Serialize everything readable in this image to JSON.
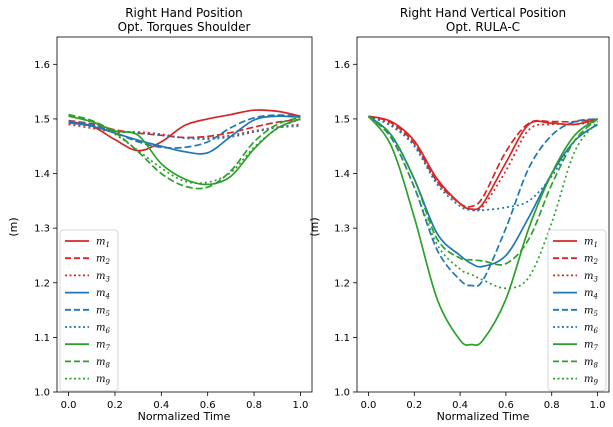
{
  "chart_data": [
    {
      "type": "line",
      "title": "Right Hand Position",
      "subtitle": "Opt. Torques Shoulder",
      "xlabel": "Normalized Time",
      "ylabel": "(m)",
      "xlim": [
        -0.05,
        1.05
      ],
      "ylim": [
        1.0,
        1.65
      ],
      "xticks": [
        "0.0",
        "0.2",
        "0.4",
        "0.6",
        "0.8",
        "1.0"
      ],
      "yticks": [
        "1.0",
        "1.1",
        "1.2",
        "1.3",
        "1.4",
        "1.5",
        "1.6"
      ],
      "grid": false,
      "legend_position": "lower-left",
      "x": [
        0,
        0.1,
        0.2,
        0.3,
        0.4,
        0.5,
        0.6,
        0.7,
        0.8,
        0.9,
        1.0
      ],
      "series": [
        {
          "name": "m1",
          "color": "#d62728",
          "dash": "solid",
          "values": [
            1.495,
            1.487,
            1.462,
            1.442,
            1.458,
            1.488,
            1.5,
            1.508,
            1.516,
            1.514,
            1.505
          ]
        },
        {
          "name": "m2",
          "color": "#d62728",
          "dash": "dashed",
          "values": [
            1.497,
            1.491,
            1.48,
            1.474,
            1.47,
            1.466,
            1.468,
            1.475,
            1.485,
            1.494,
            1.499
          ]
        },
        {
          "name": "m3",
          "color": "#d62728",
          "dash": "dotted",
          "values": [
            1.49,
            1.483,
            1.476,
            1.476,
            1.472,
            1.465,
            1.465,
            1.47,
            1.478,
            1.485,
            1.49
          ]
        },
        {
          "name": "m4",
          "color": "#1f77b4",
          "dash": "solid",
          "values": [
            1.493,
            1.487,
            1.474,
            1.461,
            1.45,
            1.44,
            1.438,
            1.468,
            1.498,
            1.505,
            1.503
          ]
        },
        {
          "name": "m5",
          "color": "#1f77b4",
          "dash": "dashed",
          "values": [
            1.496,
            1.489,
            1.475,
            1.458,
            1.448,
            1.448,
            1.458,
            1.484,
            1.502,
            1.507,
            1.505
          ]
        },
        {
          "name": "m6",
          "color": "#1f77b4",
          "dash": "dotted",
          "values": [
            1.493,
            1.486,
            1.478,
            1.474,
            1.47,
            1.465,
            1.463,
            1.467,
            1.476,
            1.484,
            1.487
          ]
        },
        {
          "name": "m7",
          "color": "#2ca02c",
          "dash": "solid",
          "values": [
            1.505,
            1.495,
            1.478,
            1.47,
            1.418,
            1.39,
            1.38,
            1.395,
            1.445,
            1.483,
            1.5
          ]
        },
        {
          "name": "m8",
          "color": "#2ca02c",
          "dash": "dashed",
          "values": [
            1.508,
            1.497,
            1.475,
            1.44,
            1.4,
            1.377,
            1.375,
            1.405,
            1.458,
            1.49,
            1.503
          ]
        },
        {
          "name": "m9",
          "color": "#2ca02c",
          "dash": "dotted",
          "values": [
            1.506,
            1.494,
            1.472,
            1.442,
            1.41,
            1.386,
            1.384,
            1.402,
            1.448,
            1.482,
            1.5
          ]
        }
      ]
    },
    {
      "type": "line",
      "title": "Right Hand Vertical Position",
      "subtitle": "Opt. RULA-C",
      "xlabel": "Normalized Time",
      "ylabel": "(m)",
      "xlim": [
        -0.05,
        1.05
      ],
      "ylim": [
        1.0,
        1.65
      ],
      "xticks": [
        "0.0",
        "0.2",
        "0.4",
        "0.6",
        "0.8",
        "1.0"
      ],
      "yticks": [
        "1.0",
        "1.1",
        "1.2",
        "1.3",
        "1.4",
        "1.5",
        "1.6"
      ],
      "grid": false,
      "legend_position": "lower-right",
      "x": [
        0,
        0.1,
        0.2,
        0.3,
        0.4,
        0.45,
        0.5,
        0.6,
        0.7,
        0.8,
        0.9,
        1.0
      ],
      "series": [
        {
          "name": "m1",
          "color": "#d62728",
          "dash": "solid",
          "values": [
            1.505,
            1.495,
            1.46,
            1.39,
            1.345,
            1.335,
            1.345,
            1.42,
            1.49,
            1.492,
            1.49,
            1.5
          ]
        },
        {
          "name": "m2",
          "color": "#d62728",
          "dash": "dashed",
          "values": [
            1.505,
            1.493,
            1.455,
            1.385,
            1.345,
            1.34,
            1.357,
            1.44,
            1.492,
            1.495,
            1.495,
            1.5
          ]
        },
        {
          "name": "m3",
          "color": "#d62728",
          "dash": "dotted",
          "values": [
            1.503,
            1.49,
            1.452,
            1.385,
            1.345,
            1.335,
            1.34,
            1.405,
            1.48,
            1.49,
            1.49,
            1.495
          ]
        },
        {
          "name": "m4",
          "color": "#1f77b4",
          "dash": "solid",
          "values": [
            1.505,
            1.47,
            1.39,
            1.29,
            1.25,
            1.235,
            1.23,
            1.25,
            1.32,
            1.4,
            1.46,
            1.49
          ]
        },
        {
          "name": "m5",
          "color": "#1f77b4",
          "dash": "dashed",
          "values": [
            1.505,
            1.465,
            1.375,
            1.26,
            1.205,
            1.195,
            1.205,
            1.3,
            1.41,
            1.47,
            1.495,
            1.5
          ]
        },
        {
          "name": "m6",
          "color": "#1f77b4",
          "dash": "dotted",
          "values": [
            1.505,
            1.487,
            1.45,
            1.38,
            1.34,
            1.333,
            1.333,
            1.338,
            1.35,
            1.395,
            1.46,
            1.49
          ]
        },
        {
          "name": "m7",
          "color": "#2ca02c",
          "dash": "solid",
          "values": [
            1.505,
            1.45,
            1.32,
            1.17,
            1.095,
            1.087,
            1.095,
            1.17,
            1.3,
            1.4,
            1.47,
            1.5
          ]
        },
        {
          "name": "m8",
          "color": "#2ca02c",
          "dash": "dashed",
          "values": [
            1.505,
            1.47,
            1.39,
            1.28,
            1.245,
            1.242,
            1.24,
            1.235,
            1.28,
            1.38,
            1.46,
            1.5
          ]
        },
        {
          "name": "m9",
          "color": "#2ca02c",
          "dash": "dotted",
          "values": [
            1.505,
            1.465,
            1.375,
            1.27,
            1.225,
            1.215,
            1.205,
            1.19,
            1.21,
            1.31,
            1.44,
            1.495
          ]
        }
      ]
    }
  ]
}
